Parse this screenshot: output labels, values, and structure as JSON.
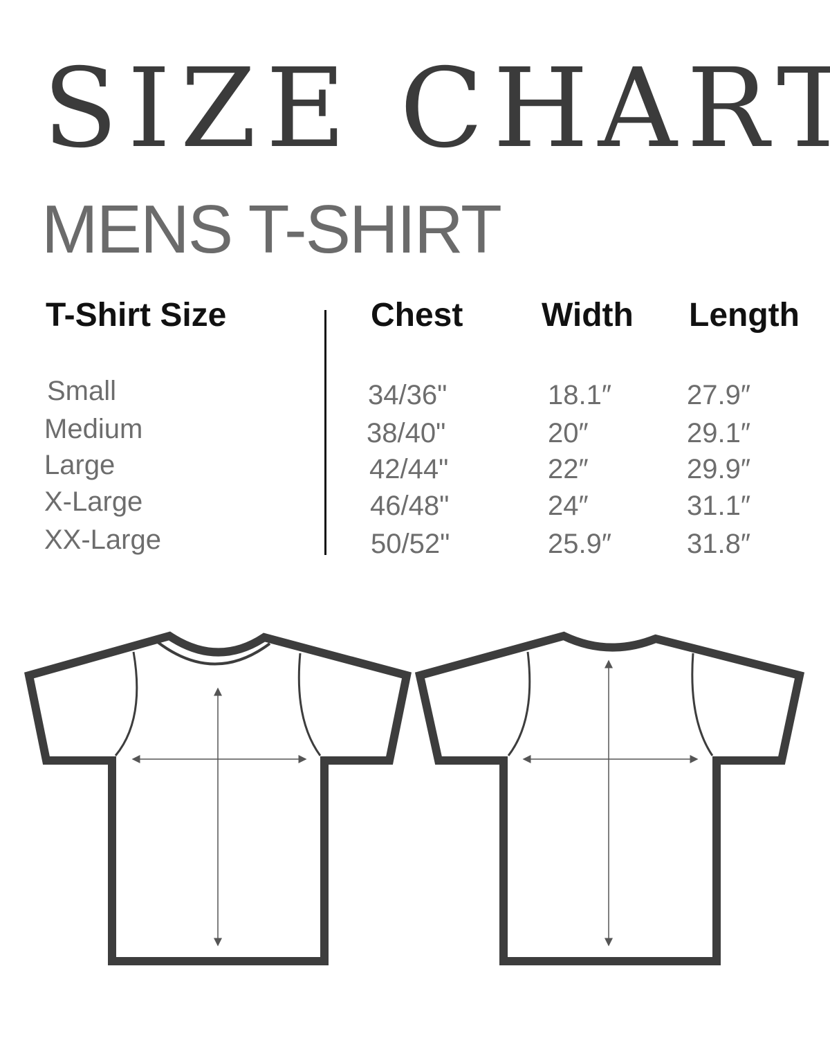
{
  "title": "SIZE CHART",
  "subtitle": "MENS T-SHIRT",
  "table": {
    "headers": [
      "T-Shirt Size",
      "Chest",
      "Width",
      "Length"
    ],
    "rows": [
      [
        "Small",
        "34/36\"",
        "18.1″",
        "27.9″"
      ],
      [
        "Medium",
        "38/40\"",
        "20″",
        "29.1″"
      ],
      [
        "Large",
        "42/44\"",
        "22″",
        "29.9″"
      ],
      [
        "X-Large",
        "46/48\"",
        "24″",
        "31.1″"
      ],
      [
        "XX-Large",
        "50/52\"",
        "25.9″",
        "31.8″"
      ]
    ]
  },
  "colors": {
    "outline": "#3d3d3d",
    "title": "#3b3b3b",
    "subtitle": "#6b6b6b",
    "values": "#6d6d6d"
  },
  "illustrations": [
    "t-shirt-front-icon",
    "t-shirt-back-icon"
  ]
}
